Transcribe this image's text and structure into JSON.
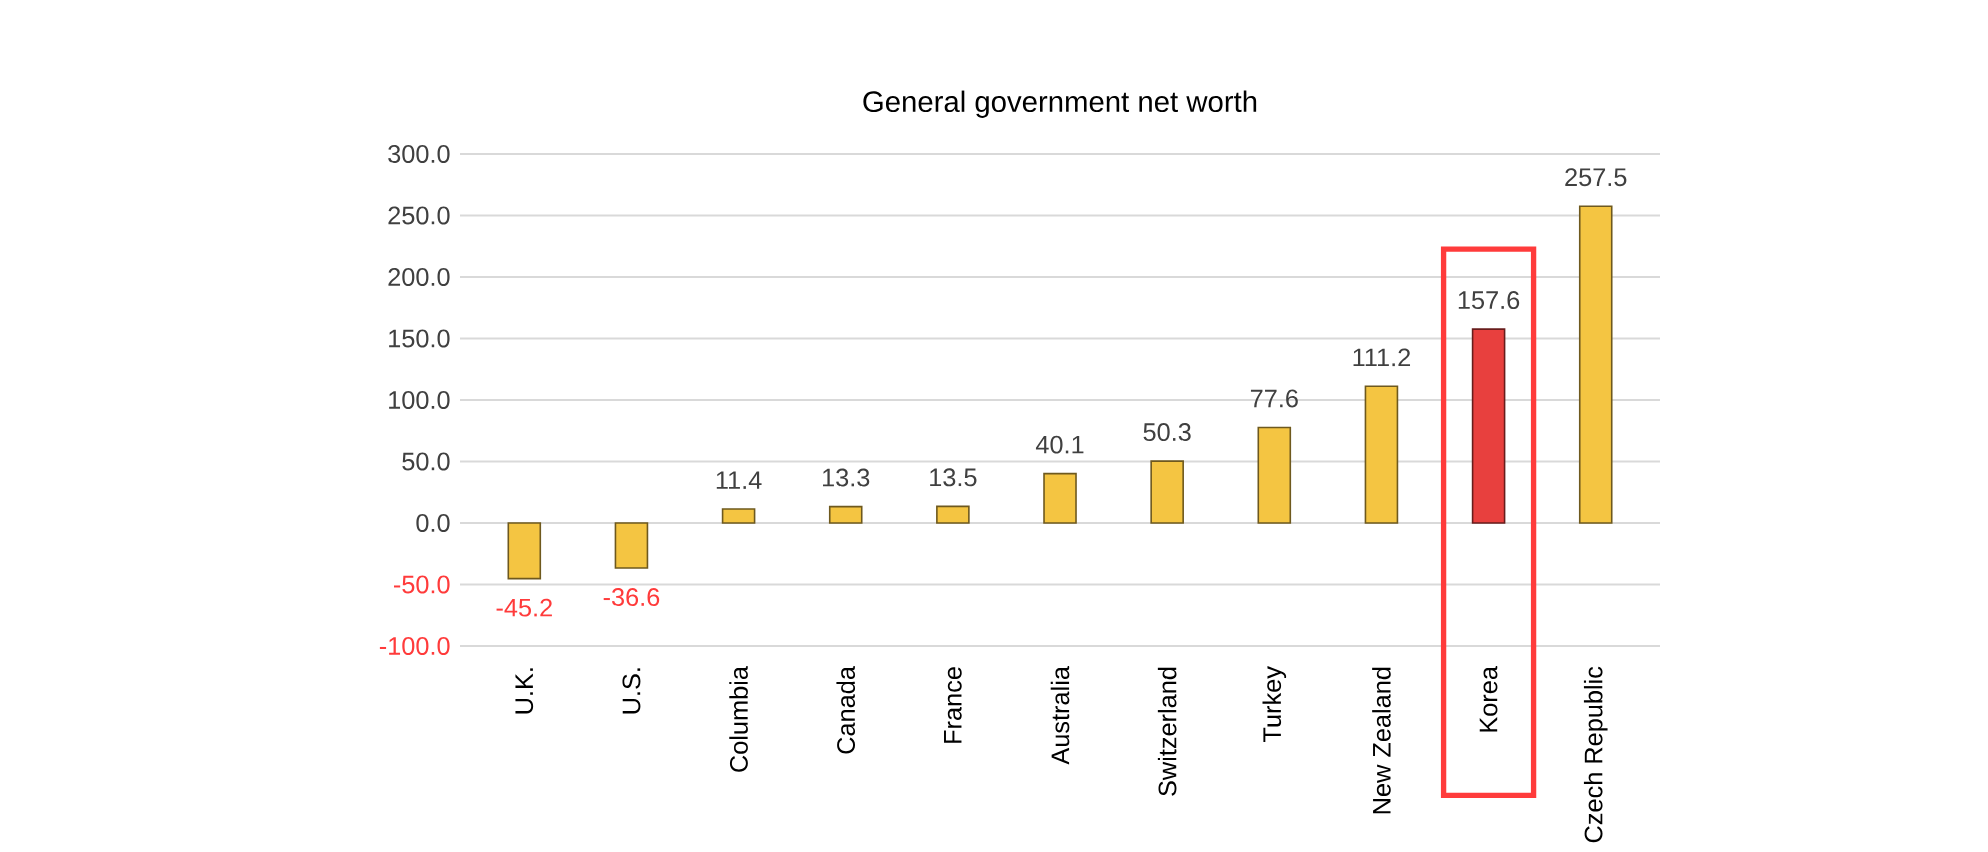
{
  "chart_data": {
    "type": "bar",
    "title": "General government net worth",
    "categories": [
      "U.K.",
      "U.S.",
      "Columbia",
      "Canada",
      "France",
      "Australia",
      "Switzerland",
      "Turkey",
      "New Zealand",
      "Korea",
      "Czech Republic"
    ],
    "values": [
      -45.2,
      -36.6,
      11.4,
      13.3,
      13.5,
      40.1,
      50.3,
      77.6,
      111.2,
      157.6,
      257.5
    ],
    "colors": [
      "#f4c542",
      "#f4c542",
      "#f4c542",
      "#f4c542",
      "#f4c542",
      "#f4c542",
      "#f4c542",
      "#f4c542",
      "#f4c542",
      "#e8403e",
      "#f4c542"
    ],
    "ylim": [
      -100,
      300
    ],
    "yticks": [
      {
        "value": -100,
        "label": "-100.0"
      },
      {
        "value": -50,
        "label": "-50.0"
      },
      {
        "value": 0,
        "label": "0.0"
      },
      {
        "value": 50,
        "label": "50.0"
      },
      {
        "value": 100,
        "label": "100.0"
      },
      {
        "value": 150,
        "label": "150.0"
      },
      {
        "value": 200,
        "label": "200.0"
      },
      {
        "value": 250,
        "label": "250.0"
      },
      {
        "value": 300,
        "label": "300.0"
      }
    ],
    "grid": "y",
    "data_labels": true
  }
}
